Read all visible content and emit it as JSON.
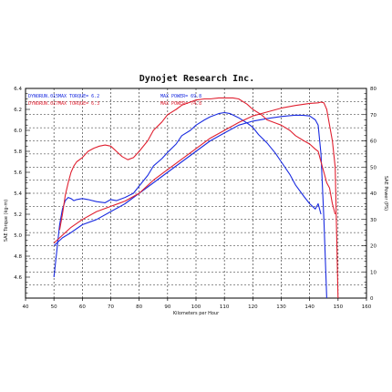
{
  "chart_data": {
    "type": "line",
    "title": "Dynojet Research Inc.",
    "xlabel": "Kilometers per Hour",
    "ylabel_left": "SAE Torque (kg-m)",
    "ylabel_right": "SAE Power (PS)",
    "xlim": [
      40,
      160
    ],
    "ylim_left": [
      4.4,
      6.4
    ],
    "ylim_right": [
      0,
      80
    ],
    "x_ticks": [
      "40",
      "50",
      "60",
      "70",
      "80",
      "90",
      "100",
      "110",
      "120",
      "130",
      "140",
      "150",
      "160"
    ],
    "y_ticks_left": [
      "4.6",
      "4.8",
      "5.0",
      "5.2",
      "5.4",
      "5.6",
      "5.8",
      "6.0",
      "6.2",
      "6.4"
    ],
    "y_ticks_right": [
      "0",
      "10",
      "20",
      "30",
      "40",
      "50",
      "60",
      "70",
      "80"
    ],
    "grid": true,
    "legend": [
      {
        "run": "DYNORUN.015",
        "torque": "MAX TORQUE= 6.2",
        "power": "MAX POWER= 69.8",
        "color": "#1a2be0"
      },
      {
        "run": "DYNORUN.017",
        "torque": "MAX TORQUE= 6.3",
        "power": "MAX POWER= 74.8",
        "color": "#e02030"
      }
    ],
    "series": [
      {
        "run": "DYNORUN.015",
        "measure": "torque",
        "axis": "left",
        "color": "#1a2be0",
        "x": [
          50,
          51,
          52,
          53,
          54,
          55,
          56,
          57,
          58,
          60,
          62,
          65,
          68,
          70,
          72,
          75,
          78,
          80,
          83,
          85,
          88,
          90,
          93,
          95,
          98,
          100,
          103,
          105,
          108,
          110,
          112,
          115,
          118,
          120,
          122,
          125,
          128,
          130,
          133,
          135,
          138,
          140,
          142,
          143,
          144
        ],
        "y": [
          4.6,
          4.85,
          5.1,
          5.25,
          5.33,
          5.36,
          5.35,
          5.33,
          5.34,
          5.35,
          5.34,
          5.32,
          5.31,
          5.34,
          5.33,
          5.36,
          5.4,
          5.47,
          5.57,
          5.66,
          5.73,
          5.79,
          5.87,
          5.95,
          6.0,
          6.05,
          6.1,
          6.13,
          6.16,
          6.17,
          6.16,
          6.12,
          6.07,
          6.03,
          5.96,
          5.88,
          5.78,
          5.7,
          5.58,
          5.48,
          5.37,
          5.3,
          5.25,
          5.3,
          5.2
        ]
      },
      {
        "run": "DYNORUN.015",
        "measure": "power",
        "axis": "right",
        "color": "#1a2be0",
        "x": [
          50,
          53,
          56,
          60,
          65,
          70,
          75,
          80,
          85,
          90,
          95,
          100,
          105,
          110,
          115,
          120,
          125,
          130,
          135,
          138,
          140,
          142,
          143,
          144,
          145,
          146
        ],
        "y": [
          20,
          23,
          25,
          28,
          30,
          33,
          36,
          40,
          44,
          48,
          52,
          56,
          60,
          63,
          66,
          67.5,
          68.5,
          69.3,
          69.8,
          69.7,
          69.5,
          68,
          66,
          55,
          30,
          0
        ]
      },
      {
        "run": "DYNORUN.017",
        "measure": "torque",
        "axis": "left",
        "color": "#e02030",
        "x": [
          52,
          53,
          54,
          55,
          56,
          57,
          58,
          60,
          62,
          64,
          66,
          68,
          70,
          72,
          74,
          76,
          78,
          80,
          83,
          85,
          88,
          90,
          93,
          95,
          98,
          100,
          103,
          105,
          108,
          110,
          113,
          115,
          118,
          120,
          123,
          125,
          128,
          130,
          133,
          135,
          138,
          140,
          142,
          143,
          144,
          145,
          146,
          147,
          148,
          149
        ],
        "y": [
          5.05,
          5.2,
          5.38,
          5.5,
          5.6,
          5.66,
          5.7,
          5.74,
          5.8,
          5.83,
          5.85,
          5.86,
          5.85,
          5.8,
          5.75,
          5.72,
          5.74,
          5.8,
          5.9,
          6.0,
          6.08,
          6.15,
          6.2,
          6.24,
          6.27,
          6.29,
          6.3,
          6.3,
          6.31,
          6.31,
          6.31,
          6.3,
          6.25,
          6.2,
          6.15,
          6.1,
          6.07,
          6.05,
          6.0,
          5.95,
          5.9,
          5.87,
          5.82,
          5.8,
          5.7,
          5.6,
          5.5,
          5.45,
          5.3,
          5.2
        ]
      },
      {
        "run": "DYNORUN.017",
        "measure": "power",
        "axis": "right",
        "color": "#e02030",
        "x": [
          50,
          53,
          56,
          60,
          65,
          70,
          75,
          80,
          85,
          90,
          95,
          100,
          105,
          110,
          115,
          120,
          125,
          130,
          135,
          140,
          143,
          144,
          145,
          146,
          147,
          148,
          149,
          150
        ],
        "y": [
          21,
          24,
          27,
          30,
          33,
          35,
          37,
          40,
          45,
          49,
          53,
          57,
          61,
          64,
          67,
          69.5,
          71,
          72.5,
          73.5,
          74.3,
          74.5,
          74.8,
          74.5,
          72,
          66,
          60,
          50,
          0
        ]
      }
    ]
  }
}
